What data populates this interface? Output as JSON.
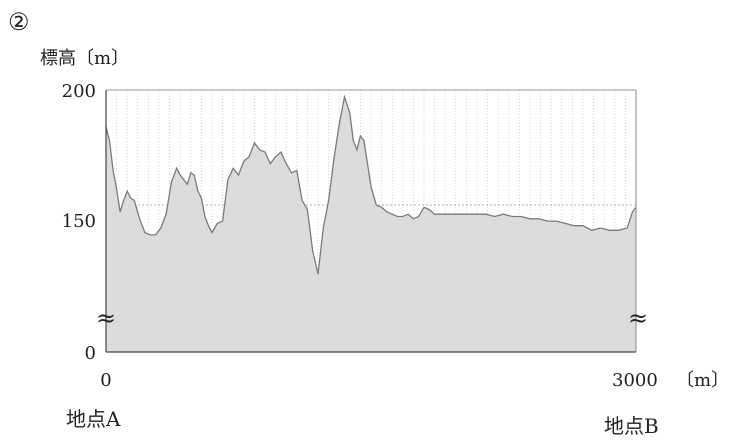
{
  "problem_number": "②",
  "chart_data": {
    "type": "area",
    "ylabel": "標高〔m〕",
    "xunit": "〔m〕",
    "xlim": [
      0,
      3000
    ],
    "ylim_break": [
      0,
      100,
      200
    ],
    "yticks": [
      "200",
      "150",
      "0"
    ],
    "xticks": [
      "0",
      "3000"
    ],
    "grid": "vertical dotted lines, one horizontal dotted line at 150",
    "axis_break_symbol": "≈",
    "start_label": "地点A",
    "end_label": "地点B",
    "series": [
      {
        "x": [
          0,
          20,
          40,
          60,
          80,
          100,
          120,
          140,
          160,
          190,
          220,
          250,
          280,
          310,
          340,
          370,
          400,
          420,
          440,
          460,
          480,
          500,
          520,
          540,
          560,
          580,
          600,
          630,
          660,
          690,
          720,
          750,
          780,
          810,
          840,
          870,
          900,
          930,
          960,
          990,
          1020,
          1050,
          1080,
          1110,
          1140,
          1170,
          1200,
          1230,
          1260,
          1290,
          1320,
          1350,
          1380,
          1400,
          1420,
          1440,
          1460,
          1480,
          1500,
          1530,
          1560,
          1590,
          1620,
          1650,
          1680,
          1710,
          1740,
          1770,
          1800,
          1830,
          1860,
          1890,
          1920,
          1950,
          1980,
          2010,
          2040,
          2070,
          2100,
          2150,
          2200,
          2250,
          2300,
          2350,
          2400,
          2450,
          2500,
          2550,
          2600,
          2650,
          2700,
          2750,
          2800,
          2850,
          2900,
          2950,
          2980,
          3000
        ],
        "y": [
          184,
          178,
          165,
          157,
          147,
          152,
          156,
          153,
          152,
          144,
          138,
          137,
          137,
          140,
          146,
          160,
          166,
          163,
          161,
          159,
          164,
          163,
          156,
          153,
          145,
          141,
          138,
          142,
          143,
          161,
          166,
          163,
          169,
          171,
          177,
          174,
          173,
          168,
          171,
          173,
          168,
          164,
          165,
          152,
          148,
          130,
          120,
          140,
          152,
          170,
          185,
          197,
          190,
          178,
          174,
          180,
          178,
          168,
          158,
          150,
          149,
          147,
          146,
          145,
          145,
          146,
          144,
          145,
          149,
          148,
          146,
          146,
          146,
          146,
          146,
          146,
          146,
          146,
          146,
          146,
          145,
          146,
          145,
          145,
          144,
          144,
          143,
          143,
          142,
          141,
          141,
          139,
          140,
          139,
          139,
          140,
          147,
          149
        ]
      }
    ]
  }
}
